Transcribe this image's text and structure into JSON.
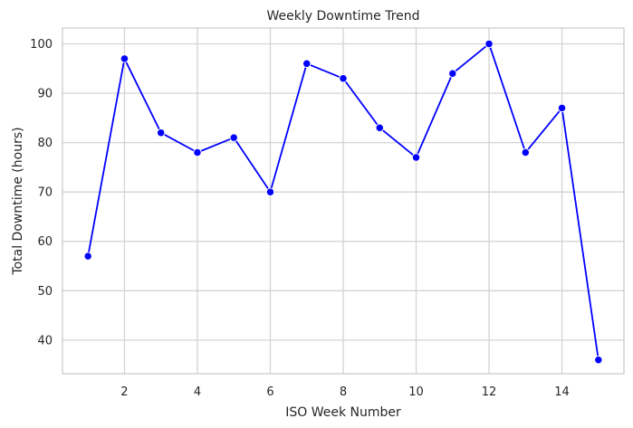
{
  "chart_data": {
    "type": "line",
    "title": "Weekly Downtime Trend",
    "xlabel": "ISO Week Number",
    "ylabel": "Total Downtime (hours)",
    "x": [
      1,
      2,
      3,
      4,
      5,
      6,
      7,
      8,
      9,
      10,
      11,
      12,
      13,
      14,
      15
    ],
    "series": [
      {
        "values": [
          57,
          97,
          82,
          78,
          81,
          70,
          96,
          93,
          83,
          77,
          94,
          100,
          78,
          87,
          36
        ],
        "color": "#0000ff",
        "marker": "circle"
      }
    ],
    "x_ticks": [
      2,
      4,
      6,
      8,
      10,
      12,
      14
    ],
    "y_ticks": [
      40,
      50,
      60,
      70,
      80,
      90,
      100
    ],
    "xlim": [
      0.3,
      15.7
    ],
    "ylim": [
      33.2,
      103.2
    ],
    "grid": true
  }
}
